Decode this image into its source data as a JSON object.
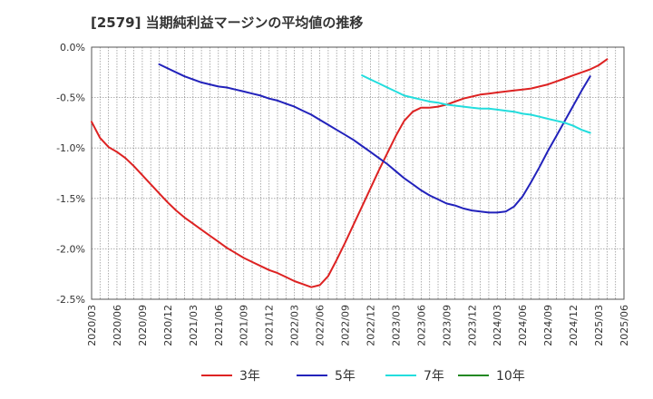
{
  "chart_data": {
    "type": "line",
    "title": "[2579]  当期純利益マージンの平均値の推移",
    "xlabel": "",
    "ylabel": "",
    "x_ticks": [
      "2020/03",
      "2020/06",
      "2020/09",
      "2020/12",
      "2021/03",
      "2021/06",
      "2021/09",
      "2021/12",
      "2022/03",
      "2022/06",
      "2022/09",
      "2022/12",
      "2023/03",
      "2023/06",
      "2023/09",
      "2023/12",
      "2024/03",
      "2024/06",
      "2024/09",
      "2024/12",
      "2025/03",
      "2025/06"
    ],
    "y_ticks": [
      "0.0%",
      "-0.5%",
      "-1.0%",
      "-1.5%",
      "-2.0%",
      "-2.5%"
    ],
    "ylim": [
      -2.5,
      0.0
    ],
    "grid": true,
    "legend_position": "bottom",
    "series": [
      {
        "name": "3年",
        "color": "#dd2222",
        "start_index": 0,
        "values": [
          -0.74,
          -0.9,
          -0.99,
          -1.04,
          -1.1,
          -1.18,
          -1.27,
          -1.36,
          -1.45,
          -1.54,
          -1.62,
          -1.69,
          -1.75,
          -1.81,
          -1.87,
          -1.93,
          -1.99,
          -2.04,
          -2.09,
          -2.13,
          -2.17,
          -2.21,
          -2.24,
          -2.28,
          -2.32,
          -2.35,
          -2.38,
          -2.36,
          -2.27,
          -2.11,
          -1.94,
          -1.76,
          -1.58,
          -1.4,
          -1.22,
          -1.05,
          -0.88,
          -0.73,
          -0.64,
          -0.6,
          -0.6,
          -0.59,
          -0.57,
          -0.54,
          -0.51,
          -0.49,
          -0.47,
          -0.46,
          -0.45,
          -0.44,
          -0.43,
          -0.42,
          -0.41,
          -0.39,
          -0.37,
          -0.34,
          -0.31,
          -0.28,
          -0.25,
          -0.22,
          -0.18,
          -0.12
        ]
      },
      {
        "name": "5年",
        "color": "#2222bb",
        "start_index": 8,
        "values": [
          -0.17,
          -0.21,
          -0.25,
          -0.29,
          -0.32,
          -0.35,
          -0.37,
          -0.39,
          -0.4,
          -0.42,
          -0.44,
          -0.46,
          -0.48,
          -0.51,
          -0.53,
          -0.56,
          -0.59,
          -0.63,
          -0.67,
          -0.72,
          -0.77,
          -0.82,
          -0.87,
          -0.92,
          -0.98,
          -1.04,
          -1.1,
          -1.16,
          -1.23,
          -1.3,
          -1.36,
          -1.42,
          -1.47,
          -1.51,
          -1.55,
          -1.57,
          -1.6,
          -1.62,
          -1.63,
          -1.64,
          -1.64,
          -1.63,
          -1.58,
          -1.48,
          -1.34,
          -1.19,
          -1.03,
          -0.88,
          -0.73,
          -0.58,
          -0.43,
          -0.29
        ]
      },
      {
        "name": "7年",
        "color": "#22dddd",
        "start_index": 32,
        "values": [
          -0.28,
          -0.32,
          -0.36,
          -0.4,
          -0.44,
          -0.48,
          -0.5,
          -0.52,
          -0.54,
          -0.55,
          -0.57,
          -0.58,
          -0.59,
          -0.6,
          -0.61,
          -0.61,
          -0.62,
          -0.63,
          -0.64,
          -0.66,
          -0.67,
          -0.69,
          -0.71,
          -0.73,
          -0.75,
          -0.78,
          -0.82,
          -0.85
        ]
      },
      {
        "name": "10年",
        "color": "#228822",
        "start_index": 0,
        "values": []
      }
    ]
  }
}
